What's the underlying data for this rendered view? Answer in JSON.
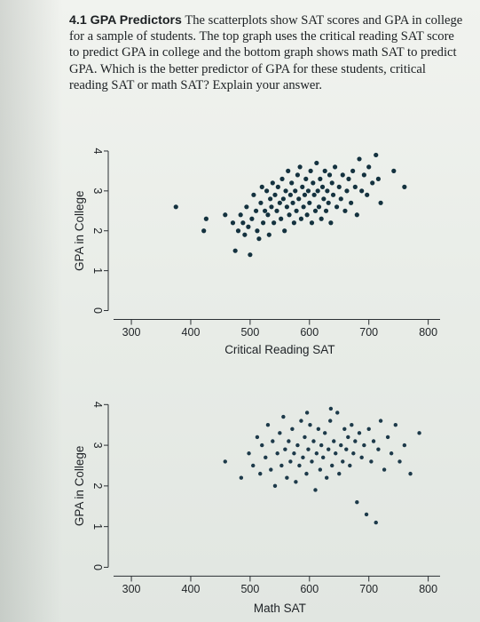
{
  "problem": {
    "heading": "4.1 GPA Predictors",
    "body": "The scatterplots show SAT scores and GPA in college for a sample of students. The top graph uses the critical reading SAT score to predict GPA in college and the bottom graph shows math SAT to predict GPA. Which is the better predictor of GPA for these students, critical reading SAT or math SAT? Explain your answer."
  },
  "chart_data": [
    {
      "type": "scatter",
      "title": "",
      "xlabel": "Critical Reading SAT",
      "ylabel": "GPA in College",
      "xlim": [
        270,
        820
      ],
      "ylim": [
        -0.1,
        4.4
      ],
      "xticks": [
        "300",
        "400",
        "500",
        "600",
        "700",
        "800"
      ],
      "yticks": [
        "0",
        "1",
        "2",
        "3",
        "4"
      ],
      "point_color": "#14323f",
      "points": [
        [
          375,
          2.6
        ],
        [
          422,
          2.0
        ],
        [
          426,
          2.3
        ],
        [
          458,
          2.4
        ],
        [
          471,
          2.2
        ],
        [
          475,
          1.5
        ],
        [
          480,
          2.0
        ],
        [
          484,
          2.4
        ],
        [
          488,
          2.2
        ],
        [
          491,
          1.9
        ],
        [
          494,
          2.6
        ],
        [
          497,
          2.1
        ],
        [
          500,
          1.4
        ],
        [
          503,
          2.3
        ],
        [
          506,
          2.9
        ],
        [
          510,
          2.5
        ],
        [
          512,
          2.0
        ],
        [
          515,
          1.8
        ],
        [
          518,
          2.7
        ],
        [
          520,
          3.1
        ],
        [
          522,
          2.2
        ],
        [
          525,
          2.5
        ],
        [
          528,
          3.0
        ],
        [
          530,
          2.4
        ],
        [
          532,
          1.9
        ],
        [
          534,
          2.8
        ],
        [
          536,
          2.6
        ],
        [
          538,
          3.2
        ],
        [
          540,
          2.2
        ],
        [
          542,
          2.9
        ],
        [
          545,
          2.5
        ],
        [
          547,
          3.1
        ],
        [
          550,
          2.7
        ],
        [
          552,
          2.3
        ],
        [
          554,
          3.3
        ],
        [
          556,
          2.8
        ],
        [
          558,
          2.0
        ],
        [
          560,
          3.0
        ],
        [
          562,
          2.6
        ],
        [
          564,
          3.5
        ],
        [
          566,
          2.4
        ],
        [
          568,
          2.9
        ],
        [
          570,
          3.2
        ],
        [
          572,
          2.7
        ],
        [
          574,
          2.2
        ],
        [
          576,
          3.0
        ],
        [
          578,
          2.5
        ],
        [
          580,
          3.4
        ],
        [
          582,
          2.8
        ],
        [
          584,
          3.6
        ],
        [
          586,
          2.3
        ],
        [
          588,
          3.1
        ],
        [
          590,
          2.6
        ],
        [
          592,
          2.9
        ],
        [
          594,
          3.3
        ],
        [
          596,
          2.4
        ],
        [
          598,
          3.0
        ],
        [
          600,
          2.7
        ],
        [
          602,
          3.5
        ],
        [
          604,
          2.2
        ],
        [
          606,
          3.2
        ],
        [
          608,
          2.9
        ],
        [
          610,
          2.5
        ],
        [
          612,
          3.7
        ],
        [
          614,
          3.0
        ],
        [
          616,
          2.6
        ],
        [
          618,
          3.3
        ],
        [
          620,
          2.3
        ],
        [
          622,
          3.1
        ],
        [
          624,
          2.8
        ],
        [
          626,
          3.5
        ],
        [
          628,
          2.5
        ],
        [
          630,
          3.0
        ],
        [
          632,
          2.7
        ],
        [
          634,
          3.4
        ],
        [
          636,
          2.2
        ],
        [
          638,
          3.2
        ],
        [
          640,
          2.9
        ],
        [
          643,
          3.6
        ],
        [
          646,
          2.6
        ],
        [
          650,
          3.1
        ],
        [
          653,
          2.8
        ],
        [
          656,
          3.4
        ],
        [
          660,
          2.5
        ],
        [
          663,
          3.0
        ],
        [
          666,
          3.3
        ],
        [
          670,
          2.7
        ],
        [
          673,
          3.5
        ],
        [
          677,
          3.1
        ],
        [
          680,
          2.4
        ],
        [
          684,
          3.8
        ],
        [
          688,
          3.0
        ],
        [
          692,
          3.4
        ],
        [
          697,
          2.9
        ],
        [
          700,
          3.6
        ],
        [
          706,
          3.2
        ],
        [
          712,
          3.9
        ],
        [
          716,
          3.3
        ],
        [
          720,
          2.7
        ],
        [
          742,
          3.5
        ],
        [
          760,
          3.1
        ]
      ]
    },
    {
      "type": "scatter",
      "title": "",
      "xlabel": "Math SAT",
      "ylabel": "GPA in College",
      "xlim": [
        270,
        820
      ],
      "ylim": [
        -0.1,
        4.4
      ],
      "xticks": [
        "300",
        "400",
        "500",
        "600",
        "700",
        "800"
      ],
      "yticks": [
        "0",
        "1",
        "2",
        "3",
        "4"
      ],
      "point_color": "#1d3a4a",
      "points": [
        [
          458,
          2.6
        ],
        [
          485,
          2.2
        ],
        [
          498,
          2.8
        ],
        [
          505,
          2.5
        ],
        [
          512,
          3.2
        ],
        [
          517,
          2.3
        ],
        [
          520,
          3.0
        ],
        [
          526,
          2.7
        ],
        [
          530,
          3.5
        ],
        [
          535,
          2.4
        ],
        [
          538,
          3.1
        ],
        [
          542,
          2.0
        ],
        [
          546,
          2.8
        ],
        [
          550,
          3.3
        ],
        [
          553,
          2.5
        ],
        [
          556,
          3.7
        ],
        [
          559,
          2.9
        ],
        [
          562,
          2.2
        ],
        [
          565,
          3.1
        ],
        [
          568,
          2.6
        ],
        [
          571,
          3.4
        ],
        [
          574,
          2.8
        ],
        [
          577,
          2.1
        ],
        [
          580,
          3.0
        ],
        [
          583,
          2.5
        ],
        [
          586,
          3.6
        ],
        [
          589,
          2.7
        ],
        [
          592,
          3.2
        ],
        [
          595,
          2.3
        ],
        [
          598,
          2.9
        ],
        [
          601,
          3.5
        ],
        [
          604,
          2.6
        ],
        [
          607,
          3.1
        ],
        [
          610,
          1.9
        ],
        [
          612,
          2.8
        ],
        [
          615,
          3.4
        ],
        [
          618,
          2.4
        ],
        [
          620,
          3.0
        ],
        [
          623,
          2.7
        ],
        [
          626,
          3.3
        ],
        [
          629,
          2.2
        ],
        [
          632,
          2.9
        ],
        [
          635,
          3.6
        ],
        [
          638,
          2.5
        ],
        [
          641,
          3.1
        ],
        [
          644,
          2.8
        ],
        [
          647,
          3.8
        ],
        [
          650,
          2.3
        ],
        [
          653,
          3.0
        ],
        [
          656,
          2.6
        ],
        [
          659,
          3.4
        ],
        [
          662,
          2.9
        ],
        [
          665,
          3.2
        ],
        [
          668,
          2.5
        ],
        [
          671,
          3.5
        ],
        [
          674,
          2.8
        ],
        [
          677,
          3.1
        ],
        [
          680,
          1.6
        ],
        [
          684,
          3.3
        ],
        [
          688,
          2.7
        ],
        [
          692,
          3.0
        ],
        [
          696,
          1.3
        ],
        [
          700,
          3.4
        ],
        [
          704,
          2.6
        ],
        [
          708,
          3.1
        ],
        [
          712,
          1.1
        ],
        [
          716,
          2.9
        ],
        [
          720,
          3.6
        ],
        [
          726,
          2.4
        ],
        [
          732,
          3.2
        ],
        [
          738,
          2.8
        ],
        [
          745,
          3.5
        ],
        [
          752,
          2.6
        ],
        [
          760,
          3.0
        ],
        [
          770,
          2.3
        ],
        [
          785,
          3.3
        ],
        [
          596,
          3.8
        ],
        [
          636,
          3.9
        ]
      ]
    }
  ]
}
